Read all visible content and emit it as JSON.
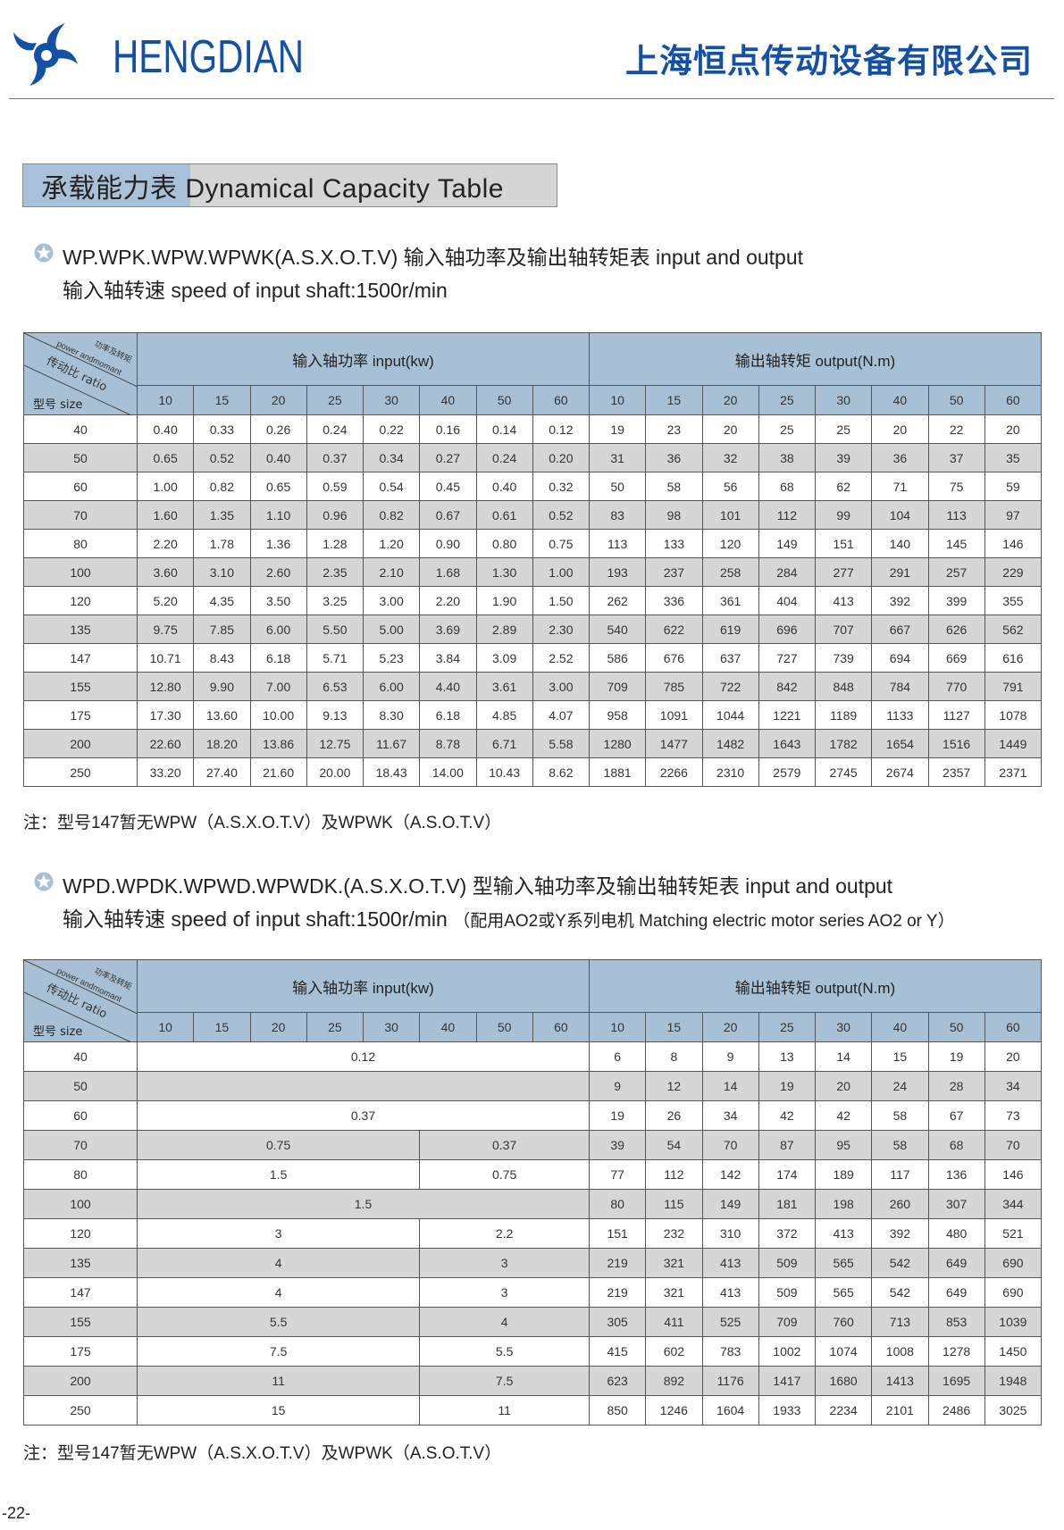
{
  "header": {
    "brand": "HENGDIAN",
    "company": "上海恒点传动设备有限公司",
    "logo_icon": "pinwheel-logo-icon",
    "brand_color": "#1450a3"
  },
  "title": {
    "cn": "承载能力表",
    "en": "Dynamical Capacity Table"
  },
  "section1": {
    "bullet_icon": "star-icon",
    "line1": "WP.WPK.WPW.WPWK(A.S.X.O.T.V) 输入轴功率及输出轴转矩表  input and output",
    "line2": "输入轴转速 speed of input shaft:1500r/min",
    "note": "注：型号147暂无WPW（A.S.X.O.T.V）及WPWK（A.S.O.T.V）"
  },
  "section2": {
    "bullet_icon": "star-icon",
    "line1": "WPD.WPDK.WPWD.WPWDK.(A.S.X.O.T.V) 型输入轴功率及输出轴转矩表  input and output",
    "line2": "输入轴转速 speed of input shaft:1500r/min",
    "line2_extra": "（配用AO2或Y系列电机 Matching electric motor series AO2 or Y）",
    "note": "注：型号147暂无WPW（A.S.X.O.T.V）及WPWK（A.S.O.T.V）"
  },
  "table_header": {
    "corner_top": "功率及转矩",
    "corner_top_en": "power andmomant",
    "corner_mid": "传动比 ratio",
    "corner_bottom": "型号 size",
    "input_title": "输入轴功率 input(kw)",
    "output_title": "输出轴转矩 output(N.m)",
    "ratios": [
      "10",
      "15",
      "20",
      "25",
      "30",
      "40",
      "50",
      "60"
    ]
  },
  "colors": {
    "header_blue": "#a8c0d6",
    "row_gray": "#d6d6d6"
  },
  "table1": [
    {
      "size": "40",
      "input": [
        "0.40",
        "0.33",
        "0.26",
        "0.24",
        "0.22",
        "0.16",
        "0.14",
        "0.12"
      ],
      "output": [
        "19",
        "23",
        "20",
        "25",
        "25",
        "20",
        "22",
        "20"
      ]
    },
    {
      "size": "50",
      "input": [
        "0.65",
        "0.52",
        "0.40",
        "0.37",
        "0.34",
        "0.27",
        "0.24",
        "0.20"
      ],
      "output": [
        "31",
        "36",
        "32",
        "38",
        "39",
        "36",
        "37",
        "35"
      ]
    },
    {
      "size": "60",
      "input": [
        "1.00",
        "0.82",
        "0.65",
        "0.59",
        "0.54",
        "0.45",
        "0.40",
        "0.32"
      ],
      "output": [
        "50",
        "58",
        "56",
        "68",
        "62",
        "71",
        "75",
        "59"
      ]
    },
    {
      "size": "70",
      "input": [
        "1.60",
        "1.35",
        "1.10",
        "0.96",
        "0.82",
        "0.67",
        "0.61",
        "0.52"
      ],
      "output": [
        "83",
        "98",
        "101",
        "112",
        "99",
        "104",
        "113",
        "97"
      ]
    },
    {
      "size": "80",
      "input": [
        "2.20",
        "1.78",
        "1.36",
        "1.28",
        "1.20",
        "0.90",
        "0.80",
        "0.75"
      ],
      "output": [
        "113",
        "133",
        "120",
        "149",
        "151",
        "140",
        "145",
        "146"
      ]
    },
    {
      "size": "100",
      "input": [
        "3.60",
        "3.10",
        "2.60",
        "2.35",
        "2.10",
        "1.68",
        "1.30",
        "1.00"
      ],
      "output": [
        "193",
        "237",
        "258",
        "284",
        "277",
        "291",
        "257",
        "229"
      ]
    },
    {
      "size": "120",
      "input": [
        "5.20",
        "4.35",
        "3.50",
        "3.25",
        "3.00",
        "2.20",
        "1.90",
        "1.50"
      ],
      "output": [
        "262",
        "336",
        "361",
        "404",
        "413",
        "392",
        "399",
        "355"
      ]
    },
    {
      "size": "135",
      "input": [
        "9.75",
        "7.85",
        "6.00",
        "5.50",
        "5.00",
        "3.69",
        "2.89",
        "2.30"
      ],
      "output": [
        "540",
        "622",
        "619",
        "696",
        "707",
        "667",
        "626",
        "562"
      ]
    },
    {
      "size": "147",
      "input": [
        "10.71",
        "8.43",
        "6.18",
        "5.71",
        "5.23",
        "3.84",
        "3.09",
        "2.52"
      ],
      "output": [
        "586",
        "676",
        "637",
        "727",
        "739",
        "694",
        "669",
        "616"
      ]
    },
    {
      "size": "155",
      "input": [
        "12.80",
        "9.90",
        "7.00",
        "6.53",
        "6.00",
        "4.40",
        "3.61",
        "3.00"
      ],
      "output": [
        "709",
        "785",
        "722",
        "842",
        "848",
        "784",
        "770",
        "791"
      ]
    },
    {
      "size": "175",
      "input": [
        "17.30",
        "13.60",
        "10.00",
        "9.13",
        "8.30",
        "6.18",
        "4.85",
        "4.07"
      ],
      "output": [
        "958",
        "1091",
        "1044",
        "1221",
        "1189",
        "1133",
        "1127",
        "1078"
      ]
    },
    {
      "size": "200",
      "input": [
        "22.60",
        "18.20",
        "13.86",
        "12.75",
        "11.67",
        "8.78",
        "6.71",
        "5.58"
      ],
      "output": [
        "1280",
        "1477",
        "1482",
        "1643",
        "1782",
        "1654",
        "1516",
        "1449"
      ]
    },
    {
      "size": "250",
      "input": [
        "33.20",
        "27.40",
        "21.60",
        "20.00",
        "18.43",
        "14.00",
        "10.43",
        "8.62"
      ],
      "output": [
        "1881",
        "2266",
        "2310",
        "2579",
        "2745",
        "2674",
        "2357",
        "2371"
      ]
    }
  ],
  "table2": [
    {
      "size": "40",
      "input": [
        {
          "value": "0.12",
          "span": 8
        }
      ],
      "output": [
        "6",
        "8",
        "9",
        "13",
        "14",
        "15",
        "19",
        "20"
      ]
    },
    {
      "size": "50",
      "input": [
        {
          "value": "",
          "span": 8
        }
      ],
      "output": [
        "9",
        "12",
        "14",
        "19",
        "20",
        "24",
        "28",
        "34"
      ]
    },
    {
      "size": "60",
      "input": [
        {
          "value": "0.37",
          "span": 8
        }
      ],
      "output": [
        "19",
        "26",
        "34",
        "42",
        "42",
        "58",
        "67",
        "73"
      ]
    },
    {
      "size": "70",
      "input": [
        {
          "value": "0.75",
          "span": 5
        },
        {
          "value": "0.37",
          "span": 3
        }
      ],
      "output": [
        "39",
        "54",
        "70",
        "87",
        "95",
        "58",
        "68",
        "70"
      ]
    },
    {
      "size": "80",
      "input": [
        {
          "value": "1.5",
          "span": 5
        },
        {
          "value": "0.75",
          "span": 3
        }
      ],
      "output": [
        "77",
        "112",
        "142",
        "174",
        "189",
        "117",
        "136",
        "146"
      ]
    },
    {
      "size": "100",
      "input": [
        {
          "value": "1.5",
          "span": 8
        }
      ],
      "output": [
        "80",
        "115",
        "149",
        "181",
        "198",
        "260",
        "307",
        "344"
      ]
    },
    {
      "size": "120",
      "input": [
        {
          "value": "3",
          "span": 5
        },
        {
          "value": "2.2",
          "span": 3
        }
      ],
      "output": [
        "151",
        "232",
        "310",
        "372",
        "413",
        "392",
        "480",
        "521"
      ]
    },
    {
      "size": "135",
      "input": [
        {
          "value": "4",
          "span": 5
        },
        {
          "value": "3",
          "span": 3
        }
      ],
      "output": [
        "219",
        "321",
        "413",
        "509",
        "565",
        "542",
        "649",
        "690"
      ]
    },
    {
      "size": "147",
      "input": [
        {
          "value": "4",
          "span": 5
        },
        {
          "value": "3",
          "span": 3
        }
      ],
      "output": [
        "219",
        "321",
        "413",
        "509",
        "565",
        "542",
        "649",
        "690"
      ]
    },
    {
      "size": "155",
      "input": [
        {
          "value": "5.5",
          "span": 5
        },
        {
          "value": "4",
          "span": 3
        }
      ],
      "output": [
        "305",
        "411",
        "525",
        "709",
        "760",
        "713",
        "853",
        "1039"
      ]
    },
    {
      "size": "175",
      "input": [
        {
          "value": "7.5",
          "span": 5
        },
        {
          "value": "5.5",
          "span": 3
        }
      ],
      "output": [
        "415",
        "602",
        "783",
        "1002",
        "1074",
        "1008",
        "1278",
        "1450"
      ]
    },
    {
      "size": "200",
      "input": [
        {
          "value": "11",
          "span": 5
        },
        {
          "value": "7.5",
          "span": 3
        }
      ],
      "output": [
        "623",
        "892",
        "1176",
        "1417",
        "1680",
        "1413",
        "1695",
        "1948"
      ]
    },
    {
      "size": "250",
      "input": [
        {
          "value": "15",
          "span": 5
        },
        {
          "value": "11",
          "span": 3
        }
      ],
      "output": [
        "850",
        "1246",
        "1604",
        "1933",
        "2234",
        "2101",
        "2486",
        "3025"
      ]
    }
  ],
  "page_number": "-22-"
}
